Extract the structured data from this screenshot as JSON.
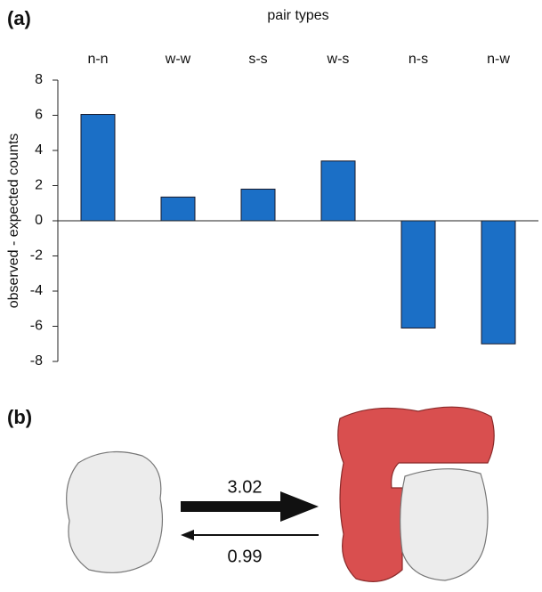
{
  "panel_a_label": "(a)",
  "chart_data": {
    "type": "bar",
    "x_label": "pair types",
    "y_label": "observed - expected counts",
    "categories": [
      "n-n",
      "w-w",
      "s-s",
      "w-s",
      "n-s",
      "n-w"
    ],
    "values": [
      6.05,
      1.35,
      1.8,
      3.4,
      -6.1,
      -7
    ],
    "color": "#1b6fc6",
    "ylim": [
      -8,
      8
    ],
    "yticks": [
      -8,
      -6,
      -4,
      -2,
      0,
      2,
      4,
      6,
      8
    ],
    "grid": false
  },
  "panel_b": {
    "label": "(b)",
    "forward_rate": 3.02,
    "reverse_rate": 0.99
  }
}
